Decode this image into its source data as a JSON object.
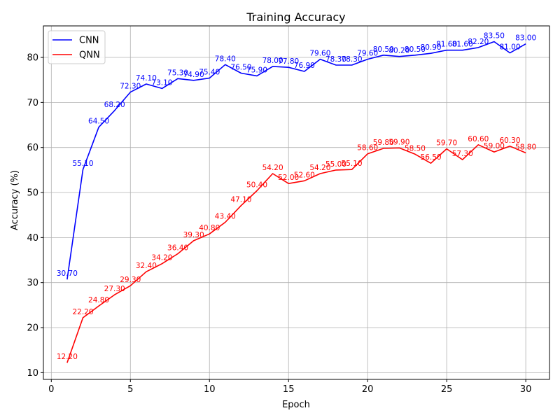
{
  "chart_data": {
    "type": "line",
    "title": "Training Accuracy",
    "xlabel": "Epoch",
    "ylabel": "Accuracy (%)",
    "xlim": [
      -0.5,
      31.5
    ],
    "ylim": [
      8.5,
      87
    ],
    "xticks": [
      0,
      5,
      10,
      15,
      20,
      25,
      30
    ],
    "yticks": [
      10,
      20,
      30,
      40,
      50,
      60,
      70,
      80
    ],
    "grid": true,
    "legend_position": "top-left",
    "x": [
      1,
      2,
      3,
      4,
      5,
      6,
      7,
      8,
      9,
      10,
      11,
      12,
      13,
      14,
      15,
      16,
      17,
      18,
      19,
      20,
      21,
      22,
      23,
      24,
      25,
      26,
      27,
      28,
      29,
      30
    ],
    "series": [
      {
        "name": "CNN",
        "color": "#0000ff",
        "values": [
          30.7,
          55.1,
          64.5,
          68.2,
          72.3,
          74.1,
          73.1,
          75.3,
          74.9,
          75.4,
          78.4,
          76.5,
          75.9,
          78.0,
          77.8,
          76.9,
          79.6,
          78.3,
          78.3,
          79.6,
          80.5,
          80.2,
          80.5,
          80.9,
          81.6,
          81.6,
          82.2,
          83.5,
          81.0,
          83.0
        ],
        "labels": [
          "30.70",
          "55.10",
          "64.50",
          "68.20",
          "72.30",
          "74.10",
          "73.10",
          "75.30",
          "74.90",
          "75.40",
          "78.40",
          "76.50",
          "75.90",
          "78.00",
          "77.80",
          "76.90",
          "79.60",
          "78.30",
          "78.30",
          "79.60",
          "80.50",
          "80.20",
          "80.50",
          "80.90",
          "81.60",
          "81.60",
          "82.20",
          "83.50",
          "81.00",
          "83.00"
        ]
      },
      {
        "name": "QNN",
        "color": "#ff0000",
        "values": [
          12.2,
          22.2,
          24.8,
          27.3,
          29.3,
          32.4,
          34.2,
          36.4,
          39.3,
          40.8,
          43.4,
          47.1,
          50.4,
          54.2,
          52.0,
          52.6,
          54.2,
          55.0,
          55.1,
          58.6,
          59.8,
          59.9,
          58.5,
          56.5,
          59.7,
          57.3,
          60.6,
          59.0,
          60.3,
          58.8
        ],
        "labels": [
          "12.20",
          "22.20",
          "24.80",
          "27.30",
          "29.30",
          "32.40",
          "34.20",
          "36.40",
          "39.30",
          "40.80",
          "43.40",
          "47.10",
          "50.40",
          "54.20",
          "52.00",
          "52.60",
          "54.20",
          "55.00",
          "55.10",
          "58.60",
          "59.80",
          "59.90",
          "58.50",
          "56.50",
          "59.70",
          "57.30",
          "60.60",
          "59.00",
          "60.30",
          "58.80"
        ]
      }
    ]
  }
}
